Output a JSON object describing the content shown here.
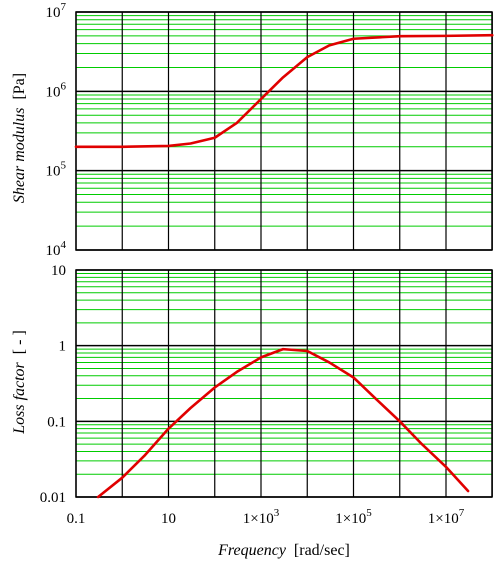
{
  "chart_data": [
    {
      "type": "line",
      "xscale": "log",
      "yscale": "log",
      "xlim": [
        0.1,
        100000000
      ],
      "ylim": [
        10000,
        10000000
      ],
      "ylabel": {
        "italic": "Shear modulus",
        "unit": "[Pa]"
      },
      "ytick_labels": [
        {
          "base": "10",
          "exp": "7",
          "value": 10000000
        },
        {
          "base": "10",
          "exp": "6",
          "value": 1000000
        },
        {
          "base": "10",
          "exp": "5",
          "value": 100000
        },
        {
          "base": "10",
          "exp": "4",
          "value": 10000
        }
      ],
      "grid": true,
      "colors": {
        "line": "#e00000",
        "major_grid": "#000000",
        "minor_grid": "#00cc00"
      },
      "series": [
        {
          "x": [
            0.1,
            1,
            10,
            30,
            100,
            300,
            1000,
            3000,
            10000,
            30000,
            100000,
            1000000,
            10000000,
            100000000
          ],
          "y": [
            200000,
            200000,
            205000,
            220000,
            260000,
            400000,
            800000,
            1500000,
            2700000,
            3800000,
            4600000,
            4950000,
            5000000,
            5100000
          ]
        }
      ]
    },
    {
      "type": "line",
      "xscale": "log",
      "yscale": "log",
      "xlim": [
        0.1,
        100000000
      ],
      "ylim": [
        0.01,
        15
      ],
      "ylabel": {
        "italic": "Loss factor",
        "unit": "[ - ]"
      },
      "ytick_labels": [
        {
          "text": "10",
          "value": 10
        },
        {
          "text": "1",
          "value": 1
        },
        {
          "text": "0.1",
          "value": 0.1
        },
        {
          "text": "0.01",
          "value": 0.01
        }
      ],
      "xlabel": {
        "italic": "Frequency",
        "unit": "[rad/sec]"
      },
      "xtick_labels": [
        {
          "text": "0.1",
          "value": 0.1
        },
        {
          "text": "10",
          "value": 10
        },
        {
          "text": "1×10",
          "exp": "3",
          "value": 1000
        },
        {
          "text": "1×10",
          "exp": "5",
          "value": 100000
        },
        {
          "text": "1×10",
          "exp": "7",
          "value": 10000000
        }
      ],
      "grid": true,
      "colors": {
        "line": "#e00000",
        "major_grid": "#000000",
        "minor_grid": "#00cc00"
      },
      "series": [
        {
          "x": [
            0.3,
            1,
            3,
            10,
            30,
            100,
            300,
            1000,
            3000,
            10000,
            30000,
            100000,
            300000,
            1000000,
            3000000,
            10000000,
            30000000
          ],
          "y": [
            0.01,
            0.018,
            0.035,
            0.08,
            0.15,
            0.28,
            0.45,
            0.7,
            0.9,
            0.85,
            0.6,
            0.38,
            0.2,
            0.1,
            0.05,
            0.025,
            0.012
          ]
        }
      ]
    }
  ]
}
